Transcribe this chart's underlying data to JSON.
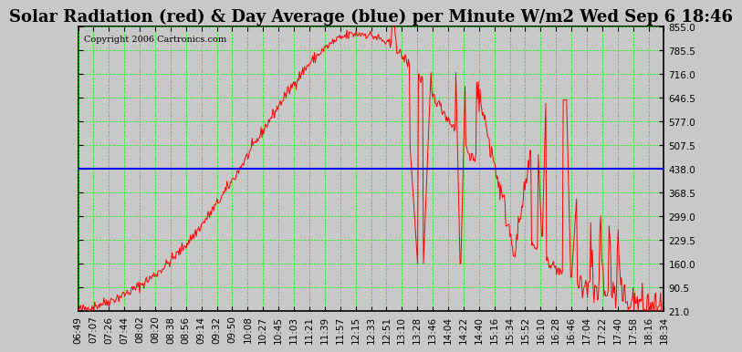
{
  "title": "Solar Radiation (red) & Day Average (blue) per Minute W/m2 Wed Sep 6 18:46",
  "copyright": "Copyright 2006 Cartronics.com",
  "background_color": "#c8c8c8",
  "plot_bg_color": "#c8c8c8",
  "grid_color": "#00ff00",
  "line_color_red": "#ff0000",
  "line_color_blue": "#0000ff",
  "yticks": [
    21.0,
    90.5,
    160.0,
    229.5,
    299.0,
    368.5,
    438.0,
    507.5,
    577.0,
    646.5,
    716.0,
    785.5,
    855.0
  ],
  "ymin": 21.0,
  "ymax": 855.0,
  "blue_line_y": 438.0,
  "xtick_labels": [
    "06:49",
    "07:07",
    "07:26",
    "07:44",
    "08:02",
    "08:20",
    "08:38",
    "08:56",
    "09:14",
    "09:32",
    "09:50",
    "10:08",
    "10:27",
    "10:45",
    "11:03",
    "11:21",
    "11:39",
    "11:57",
    "12:15",
    "12:33",
    "12:51",
    "13:10",
    "13:28",
    "13:46",
    "14:04",
    "14:22",
    "14:40",
    "15:16",
    "15:34",
    "15:52",
    "16:10",
    "16:28",
    "16:46",
    "17:04",
    "17:22",
    "17:40",
    "17:58",
    "18:16",
    "18:34"
  ],
  "title_fontsize": 13,
  "tick_fontsize": 7.5,
  "copyright_fontsize": 7
}
